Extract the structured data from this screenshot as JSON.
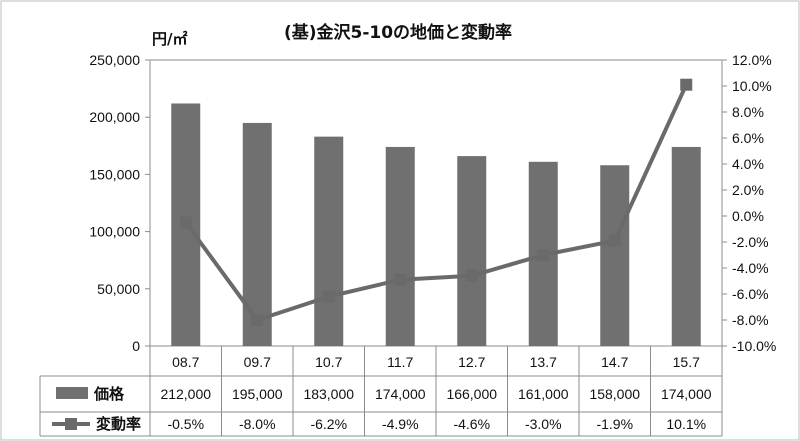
{
  "chart_data": {
    "type": "bar+line",
    "title": "(基)金沢5-10の地価と変動率",
    "unit_label": "円/㎡",
    "categories": [
      "08.7",
      "09.7",
      "10.7",
      "11.7",
      "12.7",
      "13.7",
      "14.7",
      "15.7"
    ],
    "series": [
      {
        "name": "価格",
        "type": "bar",
        "axis": "left",
        "values": [
          212000,
          195000,
          183000,
          174000,
          166000,
          161000,
          158000,
          174000
        ],
        "labels": [
          "212,000",
          "195,000",
          "183,000",
          "174,000",
          "166,000",
          "161,000",
          "158,000",
          "174,000"
        ],
        "color": "#707070"
      },
      {
        "name": "変動率",
        "type": "line",
        "axis": "right",
        "values": [
          -0.5,
          -8.0,
          -6.2,
          -4.9,
          -4.6,
          -3.0,
          -1.9,
          10.1
        ],
        "labels": [
          "-0.5%",
          "-8.0%",
          "-6.2%",
          "-4.9%",
          "-4.6%",
          "-3.0%",
          "-1.9%",
          "10.1%"
        ],
        "color": "#6a6a6a"
      }
    ],
    "y_left": {
      "min": 0,
      "max": 250000,
      "ticks": [
        "0",
        "50,000",
        "100,000",
        "150,000",
        "200,000",
        "250,000"
      ]
    },
    "y_right": {
      "min": -10,
      "max": 12,
      "ticks": [
        "-10.0%",
        "-8.0%",
        "-6.0%",
        "-4.0%",
        "-2.0%",
        "0.0%",
        "2.0%",
        "4.0%",
        "6.0%",
        "8.0%",
        "10.0%",
        "12.0%"
      ]
    },
    "grid": false,
    "legend": "data-table"
  }
}
